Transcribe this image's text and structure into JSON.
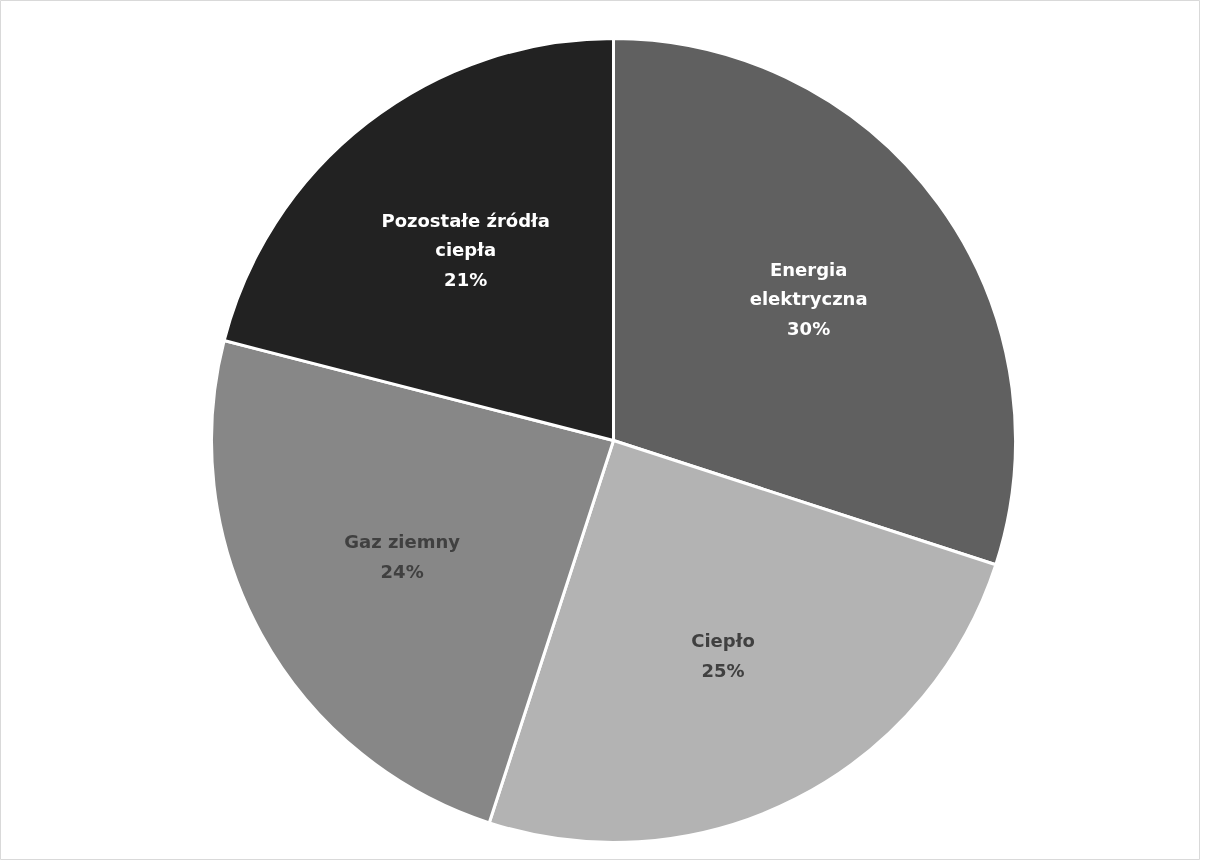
{
  "chart_data": {
    "type": "pie",
    "categories": [
      "Energia elektryczna",
      "Ciepło",
      "Gaz ziemny",
      "Pozostałe źródła ciepła"
    ],
    "values": [
      30,
      25,
      24,
      21
    ],
    "colors": [
      "#606060",
      "#b3b3b3",
      "#878787",
      "#222222"
    ],
    "value_labels": [
      "30%",
      "25%",
      "24%",
      "21%"
    ]
  }
}
